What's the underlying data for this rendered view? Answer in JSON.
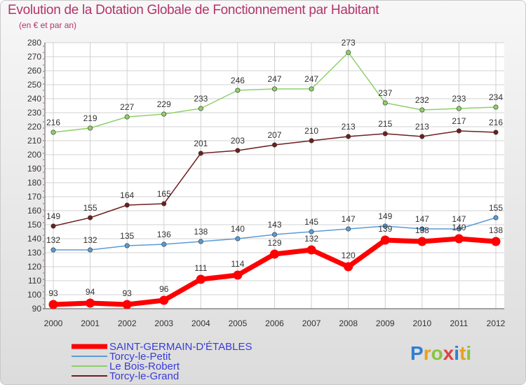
{
  "title": "Evolution de la Dotation Globale de Fonctionnement par Habitant",
  "subtitle": "(en € et par an)",
  "logo": {
    "text": "Proxiti",
    "colors": [
      "#2f7fd0",
      "#e8a11b",
      "#8ac43f",
      "#e04141",
      "#2f7fd0",
      "#e8a11b",
      "#8ac43f"
    ]
  },
  "chart_data": {
    "type": "line",
    "title": "Evolution de la Dotation Globale de Fonctionnement par Habitant",
    "subtitle": "(en € et par an)",
    "x": [
      "2000",
      "2001",
      "2002",
      "2003",
      "2004",
      "2005",
      "2006",
      "2007",
      "2008",
      "2009",
      "2010",
      "2011",
      "2012"
    ],
    "ylim": [
      90,
      280
    ],
    "yticks": [
      90,
      100,
      110,
      120,
      130,
      140,
      150,
      160,
      170,
      180,
      190,
      200,
      210,
      220,
      230,
      240,
      250,
      260,
      270,
      280
    ],
    "grid": true,
    "legend_position": "bottom-left",
    "series": [
      {
        "name": "SAINT-GERMAIN-D'ÉTABLES",
        "color": "#ff0000",
        "values": [
          93,
          94,
          93,
          96,
          111,
          114,
          129,
          132,
          120,
          139,
          138,
          140,
          138
        ],
        "labels": [
          "93",
          "94",
          "93",
          "96",
          "111",
          "114",
          "129",
          "132",
          "120",
          "139",
          "138",
          "140",
          "138"
        ]
      },
      {
        "name": "Torcy-le-Petit",
        "color": "#5b9bd5",
        "values": [
          132,
          132,
          135,
          136,
          138,
          140,
          143,
          145,
          147,
          149,
          147,
          147,
          155
        ],
        "labels": [
          "132",
          "132",
          "135",
          "136",
          "138",
          "140",
          "143",
          "145",
          "147",
          "149",
          "147",
          "147",
          "155"
        ]
      },
      {
        "name": "Le Bois-Robert",
        "color": "#8ed06a",
        "values": [
          216,
          219,
          227,
          229,
          233,
          246,
          247,
          247,
          273,
          237,
          232,
          233,
          234
        ],
        "labels": [
          "216",
          "219",
          "227",
          "229",
          "233",
          "246",
          "247",
          "247",
          "273",
          "237",
          "232",
          "233",
          "234"
        ]
      },
      {
        "name": "Torcy-le-Grand",
        "color": "#6e1f1f",
        "values": [
          149,
          155,
          164,
          165,
          201,
          203,
          207,
          210,
          213,
          215,
          213,
          217,
          216
        ],
        "labels": [
          "149",
          "155",
          "164",
          "165",
          "201",
          "203",
          "207",
          "210",
          "213",
          "215",
          "213",
          "217",
          "216"
        ]
      }
    ]
  }
}
